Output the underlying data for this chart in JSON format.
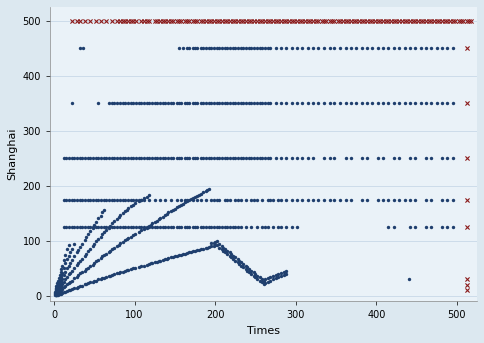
{
  "xlabel": "Times",
  "ylabel": "Shanghai",
  "xlim": [
    -5,
    525
  ],
  "ylim": [
    -10,
    525
  ],
  "xticks": [
    0,
    100,
    200,
    300,
    400,
    500
  ],
  "yticks": [
    0,
    100,
    200,
    300,
    400,
    500
  ],
  "bg_color": "#dce8f0",
  "plot_bg_color": "#eaf2f8",
  "blue_color": "#1f3f6e",
  "red_color": "#8b1a1a",
  "dot_size": 6,
  "red_size": 6,
  "blue_bands": {
    "y450": [
      32,
      36,
      155,
      160,
      165,
      168,
      172,
      175,
      178,
      182,
      185,
      188,
      192,
      195,
      198,
      202,
      205,
      208,
      212,
      215,
      218,
      222,
      225,
      228,
      232,
      235,
      238,
      242,
      245,
      248,
      252,
      255,
      258,
      262,
      265,
      268,
      275,
      282,
      288,
      295,
      302,
      308,
      315,
      322,
      328,
      335,
      342,
      348,
      355,
      362,
      368,
      375,
      382,
      388,
      395,
      402,
      408,
      415,
      422,
      428,
      435,
      442,
      448,
      455,
      462,
      468,
      475,
      482,
      488,
      495
    ],
    "y350": [
      22,
      55,
      68,
      72,
      75,
      78,
      82,
      85,
      88,
      92,
      95,
      98,
      102,
      105,
      108,
      112,
      115,
      118,
      122,
      125,
      128,
      132,
      135,
      138,
      142,
      145,
      148,
      152,
      155,
      158,
      162,
      165,
      168,
      172,
      175,
      178,
      182,
      185,
      188,
      192,
      195,
      198,
      202,
      205,
      208,
      212,
      215,
      218,
      222,
      225,
      228,
      232,
      235,
      238,
      242,
      245,
      248,
      252,
      255,
      258,
      262,
      265,
      268,
      275,
      282,
      288,
      295,
      302,
      308,
      315,
      322,
      328,
      335,
      342,
      348,
      355,
      362,
      368,
      375,
      382,
      388,
      395,
      402,
      408,
      415,
      422,
      428,
      435,
      442,
      448,
      455,
      462,
      468,
      475,
      482,
      488,
      495
    ],
    "y250": [
      12,
      15,
      18,
      22,
      25,
      28,
      32,
      35,
      38,
      42,
      45,
      48,
      52,
      55,
      58,
      62,
      65,
      68,
      72,
      75,
      78,
      82,
      85,
      88,
      92,
      95,
      98,
      102,
      105,
      108,
      112,
      115,
      118,
      122,
      125,
      128,
      132,
      135,
      138,
      142,
      145,
      148,
      152,
      155,
      158,
      162,
      165,
      168,
      172,
      175,
      178,
      182,
      185,
      188,
      192,
      195,
      198,
      202,
      205,
      208,
      212,
      215,
      218,
      222,
      225,
      228,
      232,
      235,
      238,
      242,
      245,
      248,
      252,
      255,
      258,
      262,
      265,
      268,
      275,
      282,
      288,
      295,
      302,
      308,
      315,
      322,
      335,
      342,
      348,
      362,
      368,
      382,
      388,
      402,
      408,
      422,
      428,
      442,
      448,
      462,
      468,
      482,
      488,
      495
    ],
    "y175": [
      12,
      15,
      18,
      22,
      25,
      28,
      32,
      35,
      38,
      42,
      45,
      48,
      52,
      55,
      58,
      62,
      65,
      68,
      72,
      75,
      78,
      82,
      85,
      88,
      92,
      95,
      98,
      102,
      105,
      108,
      112,
      118,
      125,
      132,
      138,
      145,
      152,
      158,
      162,
      165,
      172,
      178,
      182,
      188,
      195,
      198,
      202,
      205,
      212,
      215,
      218,
      225,
      228,
      232,
      238,
      245,
      248,
      252,
      258,
      265,
      268,
      272,
      278,
      282,
      288,
      295,
      302,
      308,
      315,
      322,
      328,
      335,
      342,
      348,
      355,
      362,
      368,
      382,
      388,
      402,
      408,
      415,
      422,
      428,
      435,
      442,
      448,
      462,
      468,
      482,
      488,
      495
    ],
    "y125": [
      12,
      15,
      18,
      22,
      25,
      28,
      32,
      35,
      38,
      42,
      45,
      48,
      52,
      55,
      58,
      62,
      65,
      68,
      72,
      75,
      78,
      82,
      85,
      88,
      92,
      95,
      98,
      102,
      105,
      108,
      112,
      115,
      118,
      122,
      125,
      128,
      132,
      135,
      138,
      142,
      145,
      148,
      152,
      155,
      158,
      162,
      165,
      168,
      172,
      175,
      178,
      182,
      185,
      188,
      192,
      195,
      198,
      202,
      205,
      208,
      212,
      215,
      218,
      222,
      225,
      228,
      232,
      238,
      245,
      252,
      258,
      262,
      265,
      272,
      278,
      282,
      288,
      295,
      302,
      415,
      422,
      442,
      448,
      462,
      468,
      482,
      488,
      495
    ]
  },
  "red_bands": {
    "y500": [
      22,
      28,
      32,
      38,
      45,
      52,
      58,
      65,
      72,
      78,
      82,
      85,
      88,
      92,
      95,
      98,
      102,
      108,
      112,
      115,
      118,
      125,
      128,
      132,
      135,
      138,
      142,
      145,
      148,
      152,
      155,
      158,
      162,
      165,
      168,
      172,
      175,
      178,
      182,
      185,
      188,
      192,
      195,
      198,
      202,
      205,
      208,
      212,
      215,
      218,
      222,
      225,
      228,
      232,
      235,
      238,
      242,
      245,
      248,
      252,
      255,
      258,
      262,
      265,
      268,
      272,
      275,
      278,
      282,
      285,
      288,
      292,
      295,
      298,
      302,
      305,
      308,
      312,
      315,
      318,
      322,
      325,
      328,
      332,
      335,
      338,
      342,
      345,
      348,
      352,
      355,
      358,
      362,
      365,
      368,
      372,
      375,
      378,
      382,
      385,
      388,
      392,
      395,
      398,
      402,
      405,
      408,
      412,
      415,
      418,
      422,
      425,
      428,
      432,
      435,
      438,
      442,
      445,
      448,
      452,
      455,
      458,
      462,
      465,
      468,
      472,
      475,
      478,
      482,
      485,
      488,
      492,
      495,
      498,
      502,
      505,
      508,
      512,
      515,
      518
    ],
    "y450": [
      512
    ],
    "y350": [
      512
    ],
    "y250": [
      512
    ],
    "y175": [
      512
    ],
    "y125": [
      512
    ],
    "y30": [
      512
    ],
    "y20": [
      512
    ],
    "y10": [
      512
    ]
  },
  "scatter_low": [
    [
      1,
      1
    ],
    [
      1,
      3
    ],
    [
      1,
      5
    ],
    [
      1,
      8
    ],
    [
      2,
      1
    ],
    [
      2,
      2
    ],
    [
      2,
      4
    ],
    [
      2,
      6
    ],
    [
      2,
      9
    ],
    [
      2,
      12
    ],
    [
      3,
      1
    ],
    [
      3,
      3
    ],
    [
      3,
      6
    ],
    [
      3,
      10
    ],
    [
      3,
      14
    ],
    [
      3,
      18
    ],
    [
      4,
      2
    ],
    [
      4,
      5
    ],
    [
      4,
      9
    ],
    [
      4,
      14
    ],
    [
      4,
      19
    ],
    [
      4,
      24
    ],
    [
      5,
      2
    ],
    [
      5,
      6
    ],
    [
      5,
      11
    ],
    [
      5,
      16
    ],
    [
      5,
      22
    ],
    [
      5,
      28
    ],
    [
      6,
      3
    ],
    [
      6,
      7
    ],
    [
      6,
      13
    ],
    [
      6,
      19
    ],
    [
      6,
      26
    ],
    [
      6,
      33
    ],
    [
      7,
      3
    ],
    [
      7,
      8
    ],
    [
      7,
      14
    ],
    [
      7,
      21
    ],
    [
      7,
      29
    ],
    [
      7,
      38
    ],
    [
      8,
      4
    ],
    [
      8,
      10
    ],
    [
      8,
      17
    ],
    [
      8,
      25
    ],
    [
      8,
      34
    ],
    [
      8,
      44
    ],
    [
      9,
      5
    ],
    [
      9,
      11
    ],
    [
      9,
      19
    ],
    [
      9,
      28
    ],
    [
      9,
      38
    ],
    [
      9,
      49
    ],
    [
      10,
      5
    ],
    [
      10,
      13
    ],
    [
      10,
      21
    ],
    [
      10,
      31
    ],
    [
      10,
      42
    ],
    [
      10,
      54
    ],
    [
      12,
      7
    ],
    [
      12,
      16
    ],
    [
      12,
      26
    ],
    [
      12,
      38
    ],
    [
      12,
      51
    ],
    [
      12,
      65
    ],
    [
      14,
      8
    ],
    [
      14,
      19
    ],
    [
      14,
      31
    ],
    [
      14,
      44
    ],
    [
      14,
      59
    ],
    [
      14,
      75
    ],
    [
      16,
      9
    ],
    [
      16,
      21
    ],
    [
      16,
      35
    ],
    [
      16,
      50
    ],
    [
      16,
      67
    ],
    [
      16,
      85
    ],
    [
      18,
      10
    ],
    [
      18,
      24
    ],
    [
      18,
      39
    ],
    [
      18,
      55
    ],
    [
      18,
      73
    ],
    [
      18,
      92
    ],
    [
      20,
      11
    ],
    [
      20,
      26
    ],
    [
      20,
      42
    ],
    [
      20,
      60
    ],
    [
      20,
      79
    ],
    [
      22,
      12
    ],
    [
      22,
      28
    ],
    [
      22,
      46
    ],
    [
      22,
      65
    ],
    [
      22,
      85
    ],
    [
      25,
      14
    ],
    [
      25,
      32
    ],
    [
      25,
      51
    ],
    [
      25,
      72
    ],
    [
      25,
      94
    ],
    [
      28,
      15
    ],
    [
      28,
      35
    ],
    [
      28,
      56
    ],
    [
      28,
      79
    ],
    [
      30,
      17
    ],
    [
      30,
      38
    ],
    [
      30,
      60
    ],
    [
      30,
      84
    ],
    [
      32,
      18
    ],
    [
      32,
      41
    ],
    [
      32,
      64
    ],
    [
      32,
      89
    ],
    [
      35,
      19
    ],
    [
      35,
      43
    ],
    [
      35,
      68
    ],
    [
      35,
      95
    ],
    [
      38,
      21
    ],
    [
      38,
      46
    ],
    [
      38,
      73
    ],
    [
      38,
      101
    ],
    [
      40,
      22
    ],
    [
      40,
      49
    ],
    [
      40,
      77
    ],
    [
      40,
      107
    ],
    [
      42,
      23
    ],
    [
      42,
      51
    ],
    [
      42,
      81
    ],
    [
      42,
      112
    ],
    [
      45,
      25
    ],
    [
      45,
      54
    ],
    [
      45,
      86
    ],
    [
      45,
      118
    ],
    [
      48,
      26
    ],
    [
      48,
      57
    ],
    [
      48,
      90
    ],
    [
      48,
      123
    ],
    [
      50,
      27
    ],
    [
      50,
      60
    ],
    [
      50,
      95
    ],
    [
      50,
      129
    ],
    [
      52,
      28
    ],
    [
      52,
      63
    ],
    [
      52,
      99
    ],
    [
      52,
      135
    ],
    [
      55,
      30
    ],
    [
      55,
      66
    ],
    [
      55,
      103
    ],
    [
      55,
      141
    ],
    [
      58,
      31
    ],
    [
      58,
      69
    ],
    [
      58,
      107
    ],
    [
      58,
      146
    ],
    [
      60,
      32
    ],
    [
      60,
      72
    ],
    [
      60,
      112
    ],
    [
      60,
      152
    ],
    [
      62,
      33
    ],
    [
      62,
      74
    ],
    [
      62,
      116
    ],
    [
      62,
      156
    ],
    [
      65,
      35
    ],
    [
      65,
      77
    ],
    [
      65,
      120
    ],
    [
      68,
      36
    ],
    [
      68,
      80
    ],
    [
      68,
      124
    ],
    [
      70,
      37
    ],
    [
      70,
      82
    ],
    [
      70,
      128
    ],
    [
      72,
      38
    ],
    [
      72,
      85
    ],
    [
      72,
      132
    ],
    [
      75,
      40
    ],
    [
      75,
      88
    ],
    [
      75,
      136
    ],
    [
      78,
      41
    ],
    [
      78,
      91
    ],
    [
      78,
      140
    ],
    [
      80,
      42
    ],
    [
      80,
      93
    ],
    [
      80,
      143
    ],
    [
      82,
      43
    ],
    [
      82,
      96
    ],
    [
      82,
      147
    ],
    [
      85,
      44
    ],
    [
      85,
      98
    ],
    [
      85,
      150
    ],
    [
      88,
      46
    ],
    [
      88,
      101
    ],
    [
      88,
      154
    ],
    [
      90,
      47
    ],
    [
      90,
      103
    ],
    [
      90,
      157
    ],
    [
      92,
      48
    ],
    [
      92,
      106
    ],
    [
      92,
      160
    ],
    [
      95,
      49
    ],
    [
      95,
      108
    ],
    [
      95,
      163
    ],
    [
      98,
      50
    ],
    [
      98,
      111
    ],
    [
      98,
      166
    ],
    [
      100,
      51
    ],
    [
      100,
      113
    ],
    [
      100,
      169
    ],
    [
      105,
      53
    ],
    [
      105,
      116
    ],
    [
      105,
      172
    ],
    [
      108,
      54
    ],
    [
      108,
      119
    ],
    [
      108,
      175
    ],
    [
      112,
      55
    ],
    [
      112,
      122
    ],
    [
      112,
      178
    ],
    [
      115,
      57
    ],
    [
      115,
      124
    ],
    [
      115,
      180
    ],
    [
      118,
      58
    ],
    [
      118,
      127
    ],
    [
      118,
      183
    ],
    [
      120,
      59
    ],
    [
      120,
      129
    ],
    [
      122,
      60
    ],
    [
      122,
      132
    ],
    [
      125,
      61
    ],
    [
      125,
      134
    ],
    [
      128,
      62
    ],
    [
      128,
      137
    ],
    [
      130,
      63
    ],
    [
      130,
      139
    ],
    [
      132,
      64
    ],
    [
      132,
      142
    ],
    [
      135,
      65
    ],
    [
      135,
      144
    ],
    [
      138,
      67
    ],
    [
      138,
      147
    ],
    [
      140,
      68
    ],
    [
      140,
      149
    ],
    [
      142,
      69
    ],
    [
      142,
      152
    ],
    [
      145,
      70
    ],
    [
      145,
      154
    ],
    [
      148,
      71
    ],
    [
      148,
      156
    ],
    [
      150,
      72
    ],
    [
      150,
      158
    ],
    [
      152,
      73
    ],
    [
      152,
      161
    ],
    [
      155,
      74
    ],
    [
      155,
      163
    ],
    [
      158,
      75
    ],
    [
      158,
      165
    ],
    [
      160,
      76
    ],
    [
      160,
      167
    ],
    [
      162,
      77
    ],
    [
      162,
      170
    ],
    [
      165,
      78
    ],
    [
      165,
      172
    ],
    [
      168,
      79
    ],
    [
      168,
      174
    ],
    [
      170,
      80
    ],
    [
      170,
      176
    ],
    [
      172,
      81
    ],
    [
      172,
      178
    ],
    [
      175,
      82
    ],
    [
      175,
      180
    ],
    [
      178,
      83
    ],
    [
      178,
      182
    ],
    [
      180,
      84
    ],
    [
      180,
      184
    ],
    [
      182,
      85
    ],
    [
      182,
      186
    ],
    [
      185,
      86
    ],
    [
      185,
      188
    ],
    [
      188,
      87
    ],
    [
      188,
      190
    ],
    [
      190,
      88
    ],
    [
      190,
      192
    ],
    [
      192,
      89
    ],
    [
      192,
      194
    ],
    [
      195,
      90
    ],
    [
      195,
      96
    ],
    [
      198,
      91
    ],
    [
      198,
      97
    ],
    [
      200,
      92
    ],
    [
      200,
      98
    ],
    [
      202,
      93
    ],
    [
      202,
      99
    ],
    [
      205,
      88
    ],
    [
      205,
      94
    ],
    [
      208,
      85
    ],
    [
      208,
      90
    ],
    [
      210,
      82
    ],
    [
      210,
      88
    ],
    [
      212,
      79
    ],
    [
      212,
      85
    ],
    [
      215,
      76
    ],
    [
      215,
      82
    ],
    [
      218,
      73
    ],
    [
      218,
      79
    ],
    [
      220,
      70
    ],
    [
      220,
      76
    ],
    [
      222,
      67
    ],
    [
      222,
      73
    ],
    [
      225,
      64
    ],
    [
      225,
      70
    ],
    [
      228,
      61
    ],
    [
      228,
      67
    ],
    [
      230,
      58
    ],
    [
      230,
      64
    ],
    [
      232,
      55
    ],
    [
      232,
      61
    ],
    [
      235,
      52
    ],
    [
      235,
      58
    ],
    [
      238,
      49
    ],
    [
      238,
      55
    ],
    [
      240,
      46
    ],
    [
      240,
      52
    ],
    [
      242,
      43
    ],
    [
      242,
      49
    ],
    [
      245,
      40
    ],
    [
      245,
      46
    ],
    [
      248,
      37
    ],
    [
      248,
      43
    ],
    [
      250,
      34
    ],
    [
      250,
      40
    ],
    [
      252,
      31
    ],
    [
      252,
      37
    ],
    [
      255,
      28
    ],
    [
      255,
      34
    ],
    [
      258,
      25
    ],
    [
      258,
      31
    ],
    [
      260,
      22
    ],
    [
      260,
      28
    ],
    [
      262,
      24
    ],
    [
      262,
      30
    ],
    [
      265,
      26
    ],
    [
      265,
      32
    ],
    [
      268,
      28
    ],
    [
      268,
      34
    ],
    [
      272,
      30
    ],
    [
      272,
      36
    ],
    [
      275,
      32
    ],
    [
      275,
      38
    ],
    [
      278,
      34
    ],
    [
      278,
      40
    ],
    [
      282,
      36
    ],
    [
      282,
      42
    ],
    [
      285,
      38
    ],
    [
      285,
      44
    ],
    [
      288,
      40
    ],
    [
      288,
      46
    ],
    [
      440,
      30
    ]
  ]
}
